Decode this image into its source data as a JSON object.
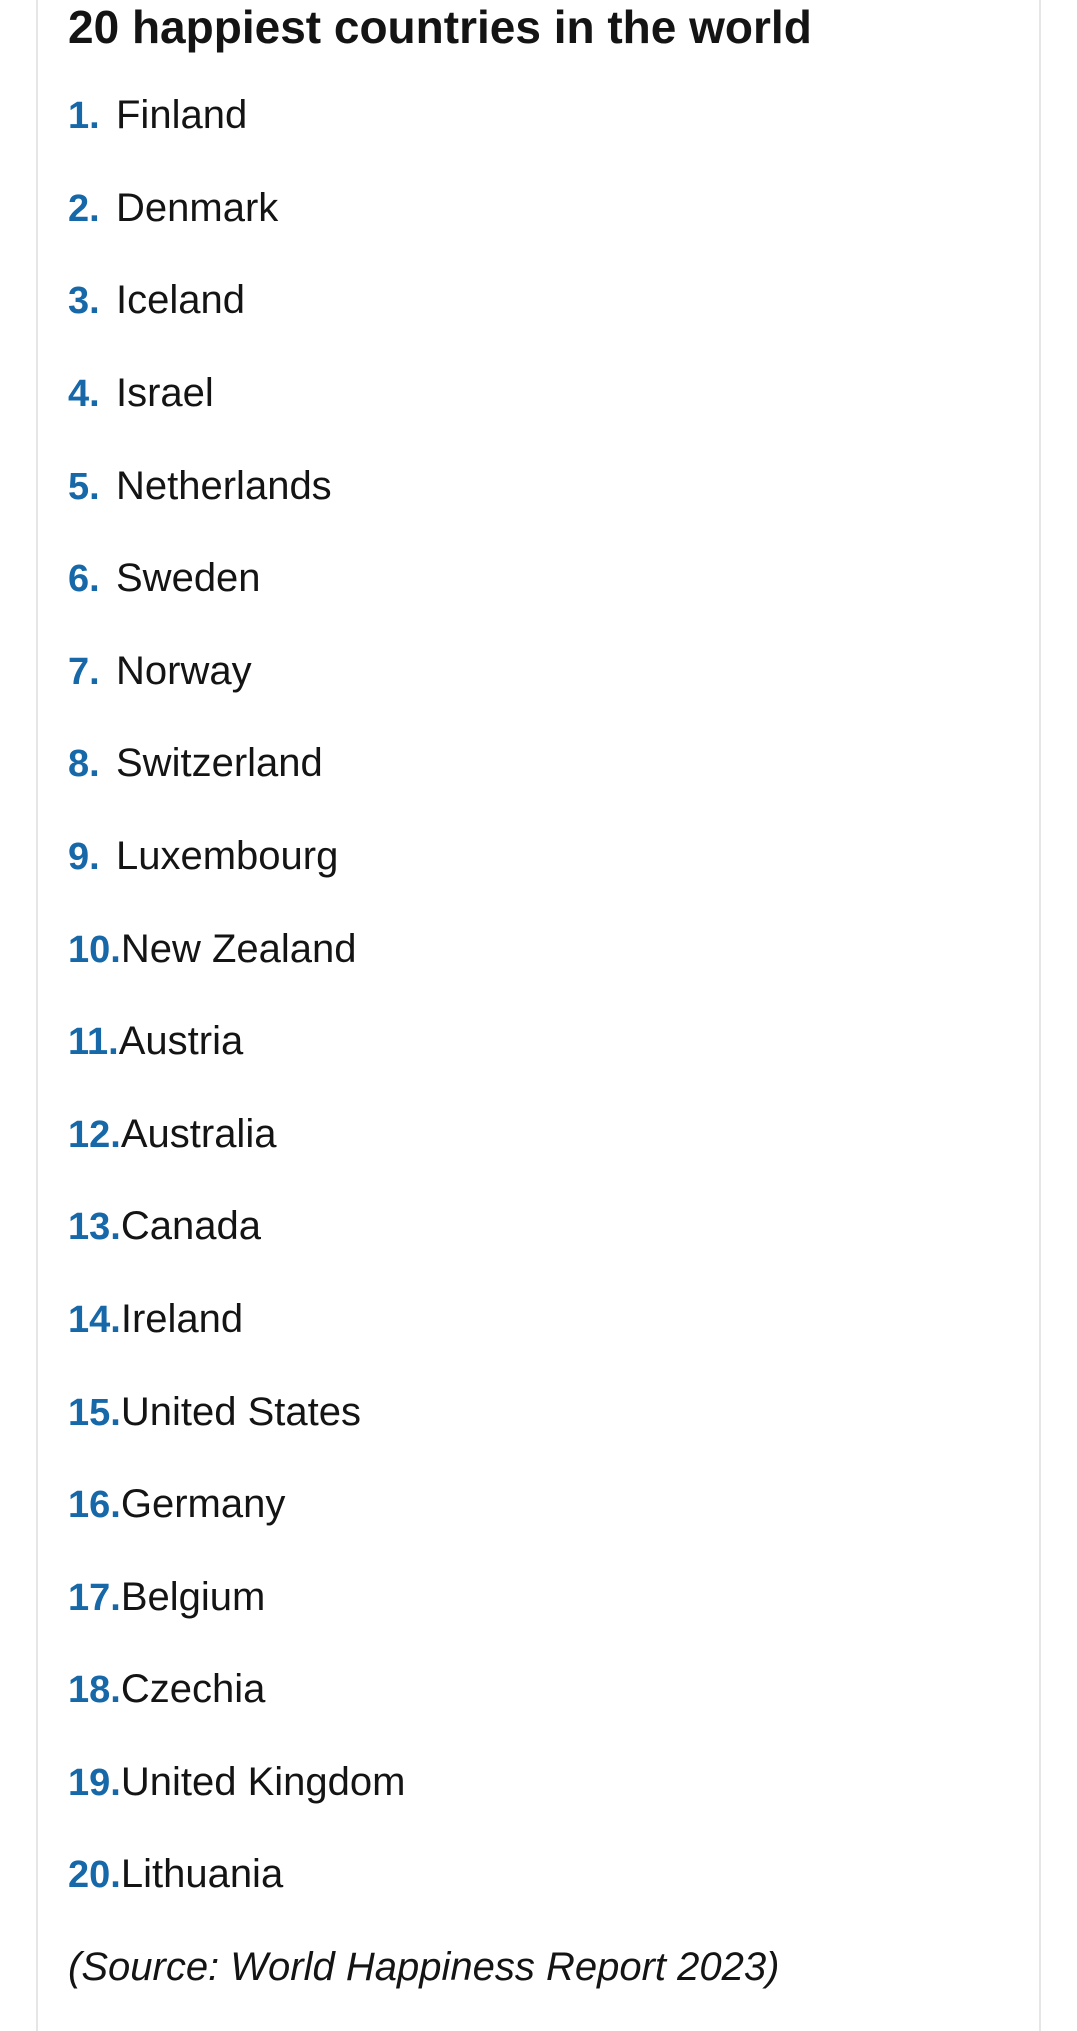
{
  "title": "20 happiest countries in the world",
  "items": [
    {
      "rank": "1.",
      "label": "Finland"
    },
    {
      "rank": "2.",
      "label": "Denmark"
    },
    {
      "rank": "3.",
      "label": "Iceland"
    },
    {
      "rank": "4.",
      "label": "Israel"
    },
    {
      "rank": "5.",
      "label": "Netherlands"
    },
    {
      "rank": "6.",
      "label": "Sweden"
    },
    {
      "rank": "7.",
      "label": "Norway"
    },
    {
      "rank": "8.",
      "label": "Switzerland"
    },
    {
      "rank": "9.",
      "label": "Luxembourg"
    },
    {
      "rank": "10.",
      "label": "New Zealand"
    },
    {
      "rank": "11.",
      "label": "Austria"
    },
    {
      "rank": "12.",
      "label": "Australia"
    },
    {
      "rank": "13.",
      "label": "Canada"
    },
    {
      "rank": "14.",
      "label": "Ireland"
    },
    {
      "rank": "15.",
      "label": "United States"
    },
    {
      "rank": "16.",
      "label": "Germany"
    },
    {
      "rank": "17.",
      "label": "Belgium"
    },
    {
      "rank": "18.",
      "label": "Czechia"
    },
    {
      "rank": "19.",
      "label": "United Kingdom"
    },
    {
      "rank": "20.",
      "label": "Lithuania"
    }
  ],
  "source": "(Source: World Happiness Report 2023)",
  "colors": {
    "number_color": "#1668a8",
    "text_color": "#141414",
    "border_color": "#e6e6e6",
    "background_color": "#ffffff"
  },
  "typography": {
    "title_fontsize": 46,
    "title_fontweight": 700,
    "item_fontsize": 40,
    "number_fontsize": 38,
    "number_fontweight": 700,
    "source_fontsize": 40
  }
}
